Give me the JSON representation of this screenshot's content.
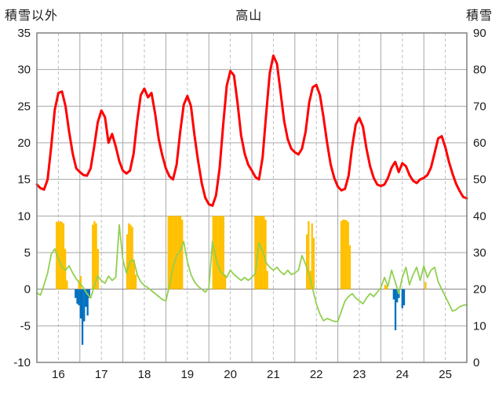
{
  "chart_data": {
    "type": "line+bar",
    "title": "高山",
    "left_axis": {
      "title": "積雪以外",
      "min": -10,
      "max": 35,
      "step": 5,
      "ticks": [
        -10,
        -5,
        0,
        5,
        10,
        15,
        20,
        25,
        30,
        35
      ]
    },
    "right_axis": {
      "title": "積雪",
      "min": 0,
      "max": 90,
      "step": 10,
      "ticks": [
        0,
        10,
        20,
        30,
        40,
        50,
        60,
        70,
        80,
        90
      ]
    },
    "x_axis": {
      "min": 16,
      "max": 26,
      "tick_labels": [
        "16",
        "17",
        "18",
        "19",
        "20",
        "21",
        "22",
        "23",
        "24",
        "25"
      ]
    },
    "colors": {
      "red_line": "#FF0000",
      "green_line": "#92D050",
      "yellow_bars": "#FFC000",
      "blue_bars": "#0070C0",
      "grid": "#A6A6A6",
      "grid_dashed": "#C0C0C0",
      "axis_border": "#808080",
      "text": "#1A1A1A"
    },
    "series": {
      "red_line": {
        "axis": "left",
        "x_start": 16,
        "x_step": 0.0833333,
        "values": [
          14.3,
          13.8,
          13.6,
          15.0,
          19.5,
          24.5,
          26.8,
          27.0,
          25.0,
          21.5,
          18.5,
          16.5,
          16.0,
          15.6,
          15.5,
          16.5,
          19.5,
          22.8,
          24.4,
          23.5,
          20.0,
          21.2,
          19.5,
          17.5,
          16.2,
          15.8,
          16.2,
          18.5,
          23.0,
          26.5,
          27.4,
          26.2,
          26.8,
          24.0,
          20.5,
          18.3,
          16.5,
          15.4,
          15.0,
          17.0,
          21.5,
          25.2,
          26.4,
          25.0,
          21.0,
          17.5,
          14.5,
          12.5,
          11.6,
          11.4,
          12.8,
          16.5,
          22.5,
          27.8,
          29.8,
          29.2,
          25.5,
          21.0,
          18.5,
          17.0,
          16.2,
          15.3,
          15.0,
          18.0,
          24.0,
          29.5,
          31.9,
          30.8,
          27.0,
          23.0,
          20.5,
          19.2,
          18.7,
          18.4,
          19.2,
          21.5,
          25.5,
          27.6,
          27.9,
          26.5,
          23.5,
          20.0,
          17.0,
          15.2,
          14.0,
          13.5,
          13.7,
          15.5,
          19.5,
          22.5,
          23.4,
          22.2,
          19.2,
          16.8,
          15.2,
          14.3,
          14.1,
          14.3,
          15.2,
          16.6,
          17.4,
          16.0,
          17.2,
          16.8,
          15.6,
          14.8,
          14.5,
          15.0,
          15.2,
          15.6,
          16.6,
          18.6,
          20.6,
          20.9,
          19.4,
          17.4,
          15.8,
          14.4,
          13.4,
          12.6,
          12.4
        ]
      },
      "green_line": {
        "axis": "left",
        "x_start": 16,
        "x_step": 0.0833333,
        "values": [
          -0.5,
          -0.8,
          0.6,
          2.2,
          4.8,
          5.5,
          4.2,
          3.0,
          2.6,
          3.2,
          2.2,
          1.4,
          0.8,
          0.2,
          -0.6,
          -1.2,
          0.4,
          1.8,
          1.2,
          0.8,
          1.8,
          1.2,
          1.6,
          8.8,
          4.0,
          2.2,
          3.8,
          4.0,
          2.0,
          1.0,
          0.5,
          0.2,
          -0.2,
          -0.6,
          -1.0,
          -1.4,
          -1.6,
          0.5,
          3.0,
          4.6,
          5.2,
          6.5,
          3.8,
          2.0,
          1.0,
          0.4,
          0.0,
          -0.4,
          0.2,
          6.5,
          4.2,
          2.6,
          2.0,
          1.6,
          2.6,
          2.0,
          1.6,
          1.2,
          1.6,
          1.2,
          1.6,
          2.2,
          6.3,
          5.2,
          3.6,
          3.0,
          2.6,
          3.0,
          2.4,
          2.0,
          2.6,
          2.0,
          2.2,
          2.6,
          4.6,
          3.4,
          2.0,
          0.0,
          -2.0,
          -3.4,
          -4.3,
          -4.0,
          -4.2,
          -4.4,
          -4.4,
          -3.0,
          -1.6,
          -1.0,
          -0.6,
          -1.2,
          -1.6,
          -2.0,
          -1.2,
          -0.6,
          -1.0,
          -0.4,
          0.2,
          1.6,
          0.4,
          2.6,
          1.0,
          -0.6,
          1.6,
          3.0,
          0.6,
          2.0,
          3.0,
          1.2,
          3.2,
          1.6,
          2.6,
          3.0,
          1.0,
          0.0,
          -1.0,
          -2.0,
          -3.0,
          -2.8,
          -2.4,
          -2.2,
          -2.1
        ]
      },
      "yellow_bars": {
        "axis": "left",
        "points": [
          [
            16.46,
            9.2
          ],
          [
            16.5,
            9.2
          ],
          [
            16.54,
            9.3
          ],
          [
            16.58,
            9.2
          ],
          [
            16.62,
            9.0
          ],
          [
            16.66,
            5.5
          ],
          [
            16.7,
            1.2
          ],
          [
            16.98,
            1.2
          ],
          [
            17.02,
            1.8
          ],
          [
            17.3,
            8.8
          ],
          [
            17.34,
            9.3
          ],
          [
            17.38,
            9.0
          ],
          [
            17.42,
            5.5
          ],
          [
            18.1,
            7.5
          ],
          [
            18.14,
            9.0
          ],
          [
            18.18,
            8.8
          ],
          [
            18.22,
            8.5
          ],
          [
            18.26,
            4.0
          ],
          [
            18.3,
            2.0
          ],
          [
            19.06,
            10
          ],
          [
            19.1,
            10
          ],
          [
            19.14,
            10
          ],
          [
            19.18,
            10
          ],
          [
            19.22,
            10
          ],
          [
            19.26,
            10
          ],
          [
            19.3,
            10
          ],
          [
            19.34,
            10
          ],
          [
            19.38,
            9.5
          ],
          [
            20.1,
            10
          ],
          [
            20.14,
            10
          ],
          [
            20.18,
            10
          ],
          [
            20.22,
            10
          ],
          [
            20.26,
            10
          ],
          [
            20.3,
            10
          ],
          [
            20.34,
            10
          ],
          [
            20.38,
            2.0
          ],
          [
            21.08,
            10
          ],
          [
            21.12,
            10
          ],
          [
            21.16,
            10
          ],
          [
            21.2,
            10
          ],
          [
            21.24,
            10
          ],
          [
            21.28,
            10
          ],
          [
            21.32,
            9.5
          ],
          [
            21.36,
            2.5
          ],
          [
            22.28,
            7.5
          ],
          [
            22.32,
            9.3
          ],
          [
            22.36,
            2.5
          ],
          [
            22.4,
            9.0
          ],
          [
            22.44,
            7.0
          ],
          [
            23.08,
            9.3
          ],
          [
            23.12,
            9.5
          ],
          [
            23.16,
            9.5
          ],
          [
            23.2,
            9.4
          ],
          [
            23.24,
            9.2
          ],
          [
            23.28,
            6.0
          ],
          [
            24.1,
            0.6
          ],
          [
            24.14,
            0.5
          ],
          [
            25.04,
            1.0
          ]
        ]
      },
      "blue_bars": {
        "axis": "left",
        "points": [
          [
            16.9,
            -1.2
          ],
          [
            16.94,
            -2.0
          ],
          [
            16.98,
            -2.2
          ],
          [
            17.02,
            -4.0
          ],
          [
            17.06,
            -7.6
          ],
          [
            17.1,
            -4.4
          ],
          [
            17.14,
            -2.4
          ],
          [
            17.18,
            -3.6
          ],
          [
            17.22,
            -1.2
          ],
          [
            24.3,
            -1.4
          ],
          [
            24.34,
            -5.6
          ],
          [
            24.38,
            -1.8
          ],
          [
            24.42,
            -1.2
          ],
          [
            24.5,
            -2.6
          ],
          [
            24.54,
            -2.2
          ]
        ]
      }
    }
  }
}
